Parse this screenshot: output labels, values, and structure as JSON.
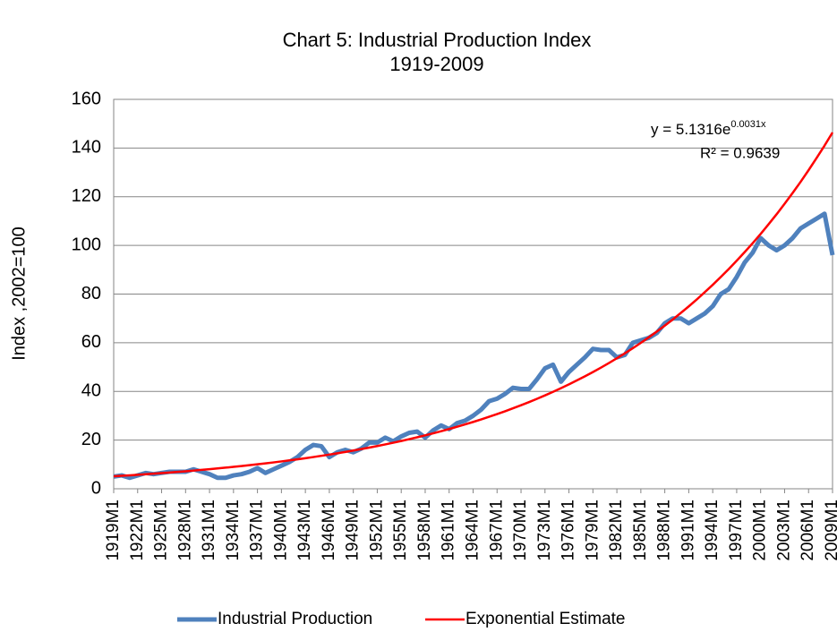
{
  "chart_data": {
    "type": "line",
    "title": "Chart 5: Industrial Production Index",
    "subtitle": "1919-2009",
    "y_label": "Index ,2002=100",
    "annotation": {
      "equation": "y = 5.1316e",
      "exponent": "0.0031x",
      "r_squared": "R² = 0.9639"
    },
    "categories": [
      "1919M1",
      null,
      null,
      "1922M1",
      null,
      null,
      "1925M1",
      null,
      null,
      "1928M1",
      null,
      null,
      "1931M1",
      null,
      null,
      "1934M1",
      null,
      null,
      "1937M1",
      null,
      null,
      "1940M1",
      null,
      null,
      "1943M1",
      null,
      null,
      "1946M1",
      null,
      null,
      "1949M1",
      null,
      null,
      "1952M1",
      null,
      null,
      "1955M1",
      null,
      null,
      "1958M1",
      null,
      null,
      "1961M1",
      null,
      null,
      "1964M1",
      null,
      null,
      "1967M1",
      null,
      null,
      "1970M1",
      null,
      null,
      "1973M1",
      null,
      null,
      "1976M1",
      null,
      null,
      "1979M1",
      null,
      null,
      "1982M1",
      null,
      null,
      "1985M1",
      null,
      null,
      "1988M1",
      null,
      null,
      "1991M1",
      null,
      null,
      "1994M1",
      null,
      null,
      "1997M1",
      null,
      null,
      "2000M1",
      null,
      null,
      "2003M1",
      null,
      null,
      "2006M1",
      null,
      null,
      "2009M1"
    ],
    "series": [
      {
        "name": "Industrial Production",
        "color": "#4f81bd",
        "width": 5,
        "values": [
          5,
          5.5,
          4.5,
          5.5,
          6.5,
          6,
          6.5,
          7,
          7,
          7,
          8,
          7,
          6,
          4.5,
          4.5,
          5.5,
          6,
          7,
          8.5,
          6.5,
          8,
          9.5,
          11,
          13,
          16,
          18,
          17.5,
          13,
          15,
          16,
          15,
          16.5,
          19,
          19,
          21,
          19.5,
          21.5,
          23,
          23.5,
          21,
          24,
          26,
          24.5,
          27,
          28,
          30,
          32.5,
          36,
          37,
          39,
          41.5,
          41,
          41,
          45,
          49.5,
          51,
          44,
          48,
          51,
          54,
          57.5,
          57,
          57,
          54,
          55,
          60,
          61,
          62,
          64,
          68,
          70,
          70,
          68,
          70,
          72,
          75,
          80,
          82,
          87,
          93,
          97,
          103,
          100,
          98,
          100,
          103,
          107,
          109,
          111,
          113,
          96
        ]
      },
      {
        "name": "Exponential Estimate",
        "color": "#ff0000",
        "width": 2.5,
        "values": [
          5.15,
          5.34,
          5.54,
          5.76,
          5.97,
          6.2,
          6.43,
          6.68,
          6.93,
          7.19,
          7.47,
          7.75,
          8.05,
          8.35,
          8.67,
          9,
          9.34,
          9.69,
          10.06,
          10.44,
          10.83,
          11.24,
          11.67,
          12.11,
          12.57,
          13.04,
          13.54,
          14.05,
          14.58,
          15.13,
          15.71,
          16.31,
          16.92,
          17.56,
          18.23,
          18.92,
          19.64,
          20.38,
          21.15,
          21.95,
          22.79,
          23.65,
          24.55,
          25.48,
          26.45,
          27.45,
          28.49,
          29.57,
          30.69,
          31.85,
          33.07,
          34.32,
          35.62,
          36.97,
          38.37,
          39.83,
          41.34,
          42.9,
          44.53,
          46.22,
          47.96,
          49.78,
          51.66,
          53.62,
          55.65,
          57.76,
          59.95,
          62.22,
          64.58,
          67.02,
          69.58,
          72.22,
          74.95,
          77.79,
          80.74,
          83.8,
          86.98,
          90.27,
          93.69,
          97.24,
          100.9,
          104.7,
          108.7,
          112.8,
          117.1,
          121.5,
          126.1,
          130.9,
          135.9,
          141,
          146.4
        ]
      }
    ],
    "ylim": [
      0,
      160
    ],
    "yticks": [
      0,
      20,
      40,
      60,
      80,
      100,
      120,
      140,
      160
    ],
    "grid": true,
    "legend": "bottom"
  }
}
